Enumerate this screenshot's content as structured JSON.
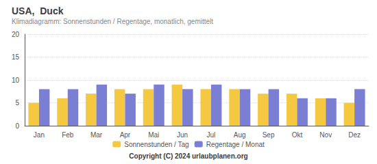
{
  "chart_data": {
    "type": "bar",
    "title": "USA,  Duck",
    "subtitle": "Klimadiagramm: Sonnenstunden / Regentage, monatlich, gemittelt",
    "categories": [
      "Jan",
      "Feb",
      "Mar",
      "Apr",
      "Mai",
      "Jun",
      "Jul",
      "Aug",
      "Sep",
      "Okt",
      "Nov",
      "Dez"
    ],
    "series": [
      {
        "name": "Sonnenstunden / Tag",
        "color": "#F5C842",
        "values": [
          5,
          6,
          7,
          8,
          8,
          9,
          8,
          8,
          7,
          7,
          6,
          5
        ]
      },
      {
        "name": "Regentage / Monat",
        "color": "#7B7FD4",
        "values": [
          8,
          8,
          9,
          7,
          9,
          8,
          9,
          8,
          8,
          6,
          6,
          8
        ]
      }
    ],
    "ylim": [
      0,
      20
    ],
    "yticks": [
      0,
      5,
      10,
      15,
      20
    ],
    "grid": true,
    "legend": "bottom",
    "annotations": [
      "Copyright (C) 2024 urlaubplanen.org"
    ]
  }
}
